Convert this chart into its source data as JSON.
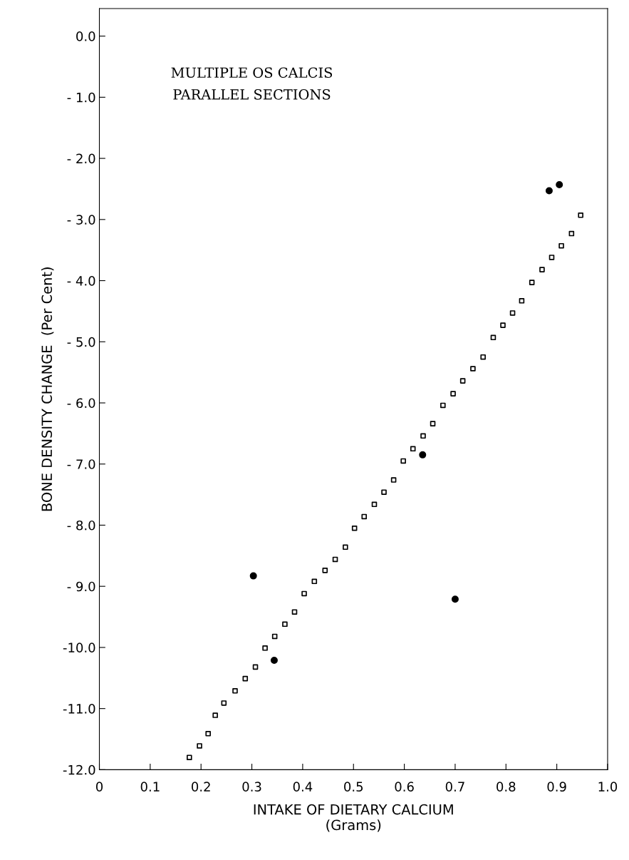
{
  "chart_data": {
    "type": "scatter",
    "xlabel": "INTAKE OF DIETARY CALCIUM\n(Grams)",
    "ylabel": "BONE DENSITY CHANGE  (Per Cent)",
    "annotations": [
      "MULTIPLE OS CALCIS\nPARALLEL SECTIONS"
    ],
    "xlim": [
      0,
      1.0
    ],
    "ylim": [
      -12.0,
      0.45
    ],
    "xticks": [
      0,
      0.1,
      0.2,
      0.3,
      0.4,
      0.5,
      0.6,
      0.7,
      0.8,
      0.9,
      {
        "value": 1.0,
        "label": "1.0"
      }
    ],
    "yticks": [
      {
        "value": 0,
        "label": "0.0"
      },
      {
        "value": -1,
        "label": "- 1.0"
      },
      {
        "value": -2,
        "label": "- 2.0"
      },
      {
        "value": -3,
        "label": "- 3.0"
      },
      {
        "value": -4,
        "label": "- 4.0"
      },
      {
        "value": -5,
        "label": "- 5.0"
      },
      {
        "value": -6,
        "label": "- 6.0"
      },
      {
        "value": -7,
        "label": "- 7.0"
      },
      {
        "value": -8,
        "label": "- 8.0"
      },
      {
        "value": -9,
        "label": "- 9.0"
      },
      {
        "value": -10,
        "label": "-10.0"
      },
      {
        "value": -11,
        "label": "-11.0"
      },
      {
        "value": -12,
        "label": "-12.0"
      }
    ],
    "series": [
      {
        "marker": "square",
        "color": "#000000",
        "x": [
          0.177,
          0.197,
          0.214,
          0.228,
          0.245,
          0.267,
          0.287,
          0.307,
          0.326,
          0.345,
          0.365,
          0.384,
          0.403,
          0.423,
          0.444,
          0.464,
          0.484,
          0.502,
          0.521,
          0.541,
          0.56,
          0.579,
          0.598,
          0.617,
          0.637,
          0.656,
          0.676,
          0.696,
          0.715,
          0.735,
          0.755,
          0.775,
          0.794,
          0.813,
          0.831,
          0.851,
          0.871,
          0.89,
          0.909,
          0.929,
          0.947
        ],
        "values": [
          -11.8,
          -11.61,
          -11.41,
          -11.11,
          -10.91,
          -10.71,
          -10.51,
          -10.32,
          -10.01,
          -9.82,
          -9.62,
          -9.42,
          -9.12,
          -8.92,
          -8.74,
          -8.56,
          -8.36,
          -8.05,
          -7.86,
          -7.66,
          -7.46,
          -7.26,
          -6.95,
          -6.75,
          -6.54,
          -6.34,
          -6.04,
          -5.85,
          -5.64,
          -5.44,
          -5.25,
          -4.93,
          -4.73,
          -4.53,
          -4.33,
          -4.03,
          -3.82,
          -3.62,
          -3.43,
          -3.23,
          -2.93
        ]
      },
      {
        "marker": "circle",
        "color": "#000000",
        "x": [
          0.303,
          0.344,
          0.636,
          0.7,
          0.885,
          0.905
        ],
        "values": [
          -8.83,
          -10.21,
          -6.85,
          -9.21,
          -2.53,
          -2.43
        ]
      }
    ]
  }
}
